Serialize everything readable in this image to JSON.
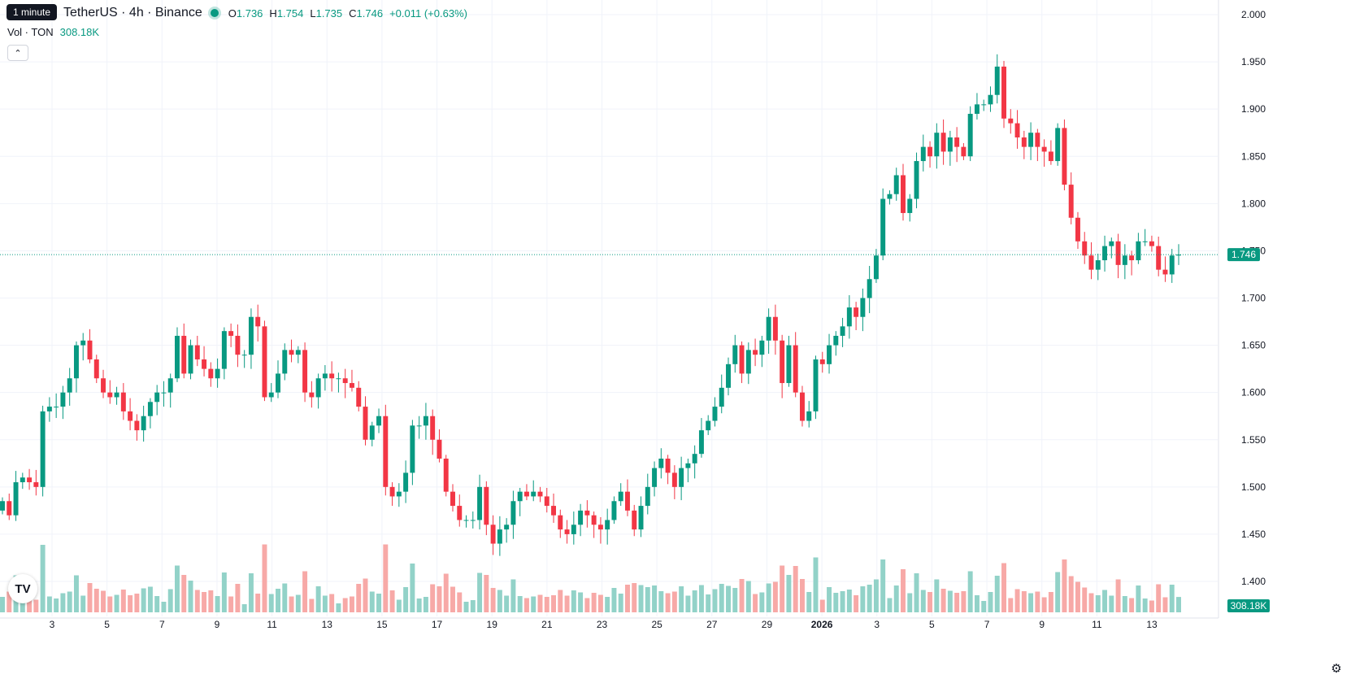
{
  "header": {
    "tooltip": "1 minute",
    "symbol": "TetherUS · 4h · Binance",
    "open_label": "O",
    "open": "1.736",
    "high_label": "H",
    "high": "1.754",
    "low_label": "L",
    "low": "1.735",
    "close_label": "C",
    "close": "1.746",
    "change": "+0.011 (+0.63%)",
    "vol_label": "Vol · TON",
    "vol_value": "308.18K"
  },
  "colors": {
    "up": "#089981",
    "down": "#f23645",
    "up_vol": "#92d2c8",
    "down_vol": "#f7a9a7",
    "grid": "#f0f3fa"
  },
  "icons": {
    "collapse": "chevron-up-icon",
    "logo": "tradingview-logo-icon",
    "settings": "gear-icon"
  },
  "chart_data": {
    "type": "candlestick",
    "interval": "4h",
    "y_ticks": [
      "2.000",
      "1.950",
      "1.900",
      "1.850",
      "1.800",
      "1.750",
      "1.700",
      "1.650",
      "1.600",
      "1.550",
      "1.500",
      "1.450",
      "1.400"
    ],
    "ylim": [
      1.375,
      2.0
    ],
    "x_ticks": [
      "3",
      "5",
      "7",
      "9",
      "11",
      "13",
      "15",
      "17",
      "19",
      "21",
      "23",
      "25",
      "27",
      "29",
      "2026",
      "3",
      "5",
      "7",
      "9",
      "11",
      "13"
    ],
    "last_price": "1.746",
    "last_volume": "308.18K",
    "closes": [
      1.485,
      1.47,
      1.505,
      1.51,
      1.505,
      1.5,
      1.58,
      1.585,
      1.585,
      1.6,
      1.615,
      1.65,
      1.655,
      1.635,
      1.615,
      1.6,
      1.595,
      1.6,
      1.58,
      1.57,
      1.56,
      1.575,
      1.59,
      1.6,
      1.6,
      1.615,
      1.66,
      1.62,
      1.65,
      1.635,
      1.625,
      1.615,
      1.625,
      1.665,
      1.66,
      1.64,
      1.64,
      1.68,
      1.67,
      1.595,
      1.6,
      1.62,
      1.645,
      1.64,
      1.645,
      1.6,
      1.595,
      1.615,
      1.62,
      1.615,
      1.615,
      1.61,
      1.605,
      1.585,
      1.55,
      1.565,
      1.575,
      1.5,
      1.49,
      1.495,
      1.515,
      1.565,
      1.565,
      1.575,
      1.55,
      1.53,
      1.495,
      1.48,
      1.465,
      1.465,
      1.465,
      1.5,
      1.46,
      1.44,
      1.455,
      1.46,
      1.485,
      1.495,
      1.49,
      1.495,
      1.49,
      1.48,
      1.47,
      1.455,
      1.45,
      1.46,
      1.475,
      1.47,
      1.46,
      1.455,
      1.465,
      1.485,
      1.495,
      1.475,
      1.455,
      1.48,
      1.5,
      1.52,
      1.53,
      1.515,
      1.5,
      1.52,
      1.525,
      1.535,
      1.56,
      1.57,
      1.585,
      1.605,
      1.63,
      1.65,
      1.62,
      1.645,
      1.64,
      1.655,
      1.68,
      1.655,
      1.61,
      1.65,
      1.6,
      1.57,
      1.58,
      1.635,
      1.63,
      1.65,
      1.66,
      1.67,
      1.69,
      1.68,
      1.7,
      1.72,
      1.745,
      1.805,
      1.81,
      1.83,
      1.79,
      1.805,
      1.845,
      1.86,
      1.85,
      1.875,
      1.855,
      1.87,
      1.86,
      1.85,
      1.895,
      1.905,
      1.905,
      1.915,
      1.945,
      1.89,
      1.885,
      1.87,
      1.86,
      1.875,
      1.86,
      1.855,
      1.845,
      1.88,
      1.82,
      1.785,
      1.76,
      1.745,
      1.73,
      1.74,
      1.755,
      1.76,
      1.735,
      1.745,
      1.74,
      1.76,
      1.76,
      1.755,
      1.73,
      1.725,
      1.745,
      1.746
    ]
  }
}
